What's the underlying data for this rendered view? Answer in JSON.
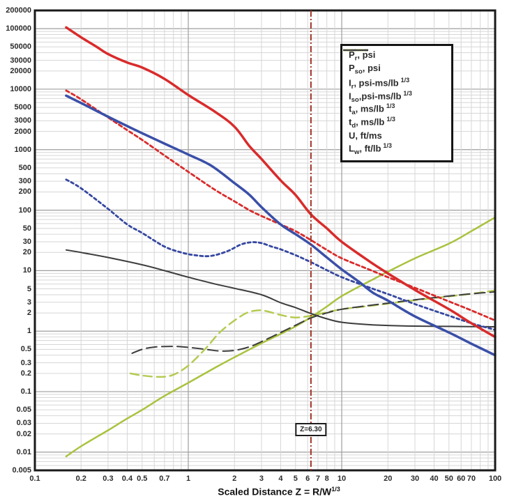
{
  "axis": {
    "x_title": "Scaled Distance Z = R/W",
    "x_title_sup": "1/3"
  },
  "colors": {
    "grid_minor": "#d6d6d6",
    "grid_major": "#9e9e9e",
    "frame": "#1a1a1a",
    "text": "#2b2b2b"
  },
  "chart_data": {
    "type": "line",
    "scale": "log-log",
    "grid": "on",
    "legend_position": "top-right",
    "x_range": [
      0.1,
      100
    ],
    "y_range": [
      0.005,
      200000
    ],
    "x_ticks": [
      "0.1",
      "0.2",
      "0.3",
      "0.4",
      "0.5",
      "0.7",
      "1",
      "2",
      "3",
      "4",
      "5",
      "6",
      "7",
      "8",
      "10",
      "20",
      "30",
      "40",
      "50",
      "60",
      "70",
      "100"
    ],
    "y_ticks": [
      "200000",
      "100000",
      "50000",
      "30000",
      "20000",
      "10000",
      "5000",
      "3000",
      "2000",
      "1000",
      "500",
      "300",
      "200",
      "100",
      "50",
      "30",
      "20",
      "10",
      "5",
      "3",
      "2",
      "1",
      "0.5",
      "0.3",
      "0.2",
      "0.1",
      "0.05",
      "0.03",
      "0.02",
      "0.01",
      "0.005"
    ],
    "marker": {
      "z": 6.3,
      "label": "Z=6.30",
      "color": "#a03122"
    },
    "series": [
      {
        "id": "ta",
        "label_main": "t",
        "label_sub": "a",
        "label_rest": ", ms/lb",
        "label_sup": "1/3",
        "color": "#a9c23f",
        "dash": "",
        "width": 2.5,
        "points": [
          [
            0.16,
            0.0085
          ],
          [
            0.2,
            0.0125
          ],
          [
            0.3,
            0.023
          ],
          [
            0.4,
            0.036
          ],
          [
            0.5,
            0.05
          ],
          [
            0.7,
            0.085
          ],
          [
            1,
            0.14
          ],
          [
            1.5,
            0.25
          ],
          [
            2,
            0.37
          ],
          [
            3,
            0.63
          ],
          [
            4,
            0.9
          ],
          [
            5,
            1.2
          ],
          [
            6.3,
            1.7
          ],
          [
            8,
            2.55
          ],
          [
            10,
            3.8
          ],
          [
            15,
            6.6
          ],
          [
            20,
            9.6
          ],
          [
            30,
            16
          ],
          [
            50,
            28
          ],
          [
            70,
            45
          ],
          [
            100,
            76
          ]
        ]
      },
      {
        "id": "td",
        "label_main": "t",
        "label_sub": "d",
        "label_rest": ", ms/lb",
        "label_sup": "1/3",
        "color": "#b4cb52",
        "dash": "12,7",
        "width": 2.5,
        "points": [
          [
            0.42,
            0.2
          ],
          [
            0.5,
            0.185
          ],
          [
            0.65,
            0.175
          ],
          [
            0.8,
            0.19
          ],
          [
            1,
            0.27
          ],
          [
            1.3,
            0.52
          ],
          [
            1.6,
            0.95
          ],
          [
            2,
            1.5
          ],
          [
            2.4,
            2.0
          ],
          [
            2.8,
            2.2
          ],
          [
            3.2,
            2.15
          ],
          [
            4,
            1.85
          ],
          [
            5,
            1.68
          ],
          [
            6.3,
            1.8
          ],
          [
            8,
            2.05
          ],
          [
            10,
            2.3
          ],
          [
            15,
            2.6
          ],
          [
            20,
            2.85
          ],
          [
            30,
            3.25
          ],
          [
            50,
            3.75
          ],
          [
            70,
            4.15
          ],
          [
            100,
            4.7
          ]
        ]
      },
      {
        "id": "Lw",
        "label_main": "L",
        "label_sub": "w",
        "label_rest": ", ft/lb",
        "label_sup": "1/3",
        "color": "#3c3c3c",
        "dash": "15,7",
        "width": 2,
        "points": [
          [
            0.43,
            0.43
          ],
          [
            0.5,
            0.5
          ],
          [
            0.6,
            0.545
          ],
          [
            0.8,
            0.56
          ],
          [
            1,
            0.54
          ],
          [
            1.3,
            0.5
          ],
          [
            1.6,
            0.47
          ],
          [
            2,
            0.48
          ],
          [
            2.5,
            0.55
          ],
          [
            3,
            0.67
          ],
          [
            4,
            0.95
          ],
          [
            5,
            1.25
          ],
          [
            6.3,
            1.65
          ],
          [
            8,
            2.0
          ],
          [
            10,
            2.3
          ],
          [
            15,
            2.65
          ],
          [
            20,
            2.9
          ],
          [
            30,
            3.3
          ],
          [
            50,
            3.8
          ],
          [
            70,
            4.15
          ],
          [
            100,
            4.45
          ]
        ]
      },
      {
        "id": "U",
        "label_main": "U",
        "label_sub": "",
        "label_rest": ", ft/ms",
        "label_sup": "",
        "color": "#3c3c3c",
        "dash": "",
        "width": 2,
        "points": [
          [
            0.16,
            22
          ],
          [
            0.2,
            20
          ],
          [
            0.3,
            16.5
          ],
          [
            0.5,
            12.5
          ],
          [
            0.7,
            10
          ],
          [
            1,
            7.8
          ],
          [
            1.5,
            6.0
          ],
          [
            2,
            5.1
          ],
          [
            3,
            4.0
          ],
          [
            4,
            2.95
          ],
          [
            5,
            2.45
          ],
          [
            6.3,
            1.95
          ],
          [
            8,
            1.6
          ],
          [
            10,
            1.4
          ],
          [
            15,
            1.28
          ],
          [
            20,
            1.24
          ],
          [
            30,
            1.21
          ],
          [
            50,
            1.2
          ],
          [
            70,
            1.19
          ],
          [
            100,
            1.18
          ]
        ]
      },
      {
        "id": "Iso",
        "label_main": "I",
        "label_sub": "so",
        "label_rest": ",psi-ms/lb",
        "label_sup": "1/3",
        "color": "#3547a0",
        "dash": "4,4",
        "width": 2.8,
        "points": [
          [
            0.16,
            320
          ],
          [
            0.2,
            230
          ],
          [
            0.3,
            105
          ],
          [
            0.4,
            58
          ],
          [
            0.5,
            42
          ],
          [
            0.7,
            25
          ],
          [
            0.9,
            20
          ],
          [
            1.1,
            18
          ],
          [
            1.4,
            17.5
          ],
          [
            1.8,
            21
          ],
          [
            2.2,
            27
          ],
          [
            2.6,
            29.5
          ],
          [
            3,
            28.5
          ],
          [
            3.5,
            25
          ],
          [
            4,
            22.5
          ],
          [
            5,
            18
          ],
          [
            6.3,
            13.8
          ],
          [
            8,
            10.2
          ],
          [
            10,
            7.8
          ],
          [
            15,
            5.3
          ],
          [
            20,
            4.1
          ],
          [
            30,
            2.8
          ],
          [
            50,
            1.8
          ],
          [
            70,
            1.35
          ],
          [
            100,
            1.05
          ]
        ]
      },
      {
        "id": "Ir",
        "label_main": "I",
        "label_sub": "r",
        "label_rest": ", psi-ms/lb",
        "label_sup": "1/3",
        "color": "#d92b2b",
        "dash": "5,4",
        "width": 2.8,
        "points": [
          [
            0.16,
            9500
          ],
          [
            0.2,
            6800
          ],
          [
            0.3,
            3400
          ],
          [
            0.4,
            2100
          ],
          [
            0.5,
            1450
          ],
          [
            0.7,
            800
          ],
          [
            1,
            430
          ],
          [
            1.5,
            215
          ],
          [
            2,
            140
          ],
          [
            2.5,
            100
          ],
          [
            3,
            80
          ],
          [
            4,
            58
          ],
          [
            5,
            45
          ],
          [
            6.3,
            32
          ],
          [
            8,
            22
          ],
          [
            10,
            16
          ],
          [
            15,
            10.5
          ],
          [
            20,
            7.8
          ],
          [
            30,
            5.2
          ],
          [
            50,
            3.1
          ],
          [
            70,
            2.2
          ],
          [
            100,
            1.5
          ]
        ]
      },
      {
        "id": "Pso",
        "label_main": "P",
        "label_sub": "so",
        "label_rest": ", psi",
        "label_sup": "",
        "color": "#3a4fa8",
        "dash": "",
        "width": 3.5,
        "points": [
          [
            0.16,
            7800
          ],
          [
            0.2,
            5900
          ],
          [
            0.3,
            3500
          ],
          [
            0.4,
            2450
          ],
          [
            0.5,
            1870
          ],
          [
            0.7,
            1260
          ],
          [
            1,
            830
          ],
          [
            1.4,
            550
          ],
          [
            2,
            280
          ],
          [
            2.5,
            180
          ],
          [
            3,
            112
          ],
          [
            4,
            58
          ],
          [
            5,
            40
          ],
          [
            6.3,
            27
          ],
          [
            8,
            16.5
          ],
          [
            10,
            10.5
          ],
          [
            13,
            6.5
          ],
          [
            16,
            4.3
          ],
          [
            20,
            3.2
          ],
          [
            30,
            1.75
          ],
          [
            50,
            0.95
          ],
          [
            70,
            0.62
          ],
          [
            100,
            0.4
          ]
        ]
      },
      {
        "id": "Pr",
        "label_main": "P",
        "label_sub": "r",
        "label_rest": ", psi",
        "label_sup": "",
        "color": "#d92b2b",
        "dash": "",
        "width": 3.5,
        "points": [
          [
            0.16,
            105000
          ],
          [
            0.2,
            72000
          ],
          [
            0.25,
            51000
          ],
          [
            0.3,
            38000
          ],
          [
            0.4,
            27500
          ],
          [
            0.5,
            22800
          ],
          [
            0.7,
            14800
          ],
          [
            1,
            8000
          ],
          [
            1.5,
            4200
          ],
          [
            2,
            2400
          ],
          [
            2.5,
            1150
          ],
          [
            3,
            700
          ],
          [
            4,
            310
          ],
          [
            5,
            178
          ],
          [
            6.3,
            85
          ],
          [
            8,
            50
          ],
          [
            10,
            30
          ],
          [
            15,
            14.5
          ],
          [
            20,
            9
          ],
          [
            30,
            4.8
          ],
          [
            50,
            2.3
          ],
          [
            70,
            1.35
          ],
          [
            100,
            0.8
          ]
        ]
      }
    ],
    "legend_order": [
      "Pr",
      "Pso",
      "Ir",
      "Iso",
      "ta",
      "td",
      "U",
      "Lw"
    ]
  }
}
